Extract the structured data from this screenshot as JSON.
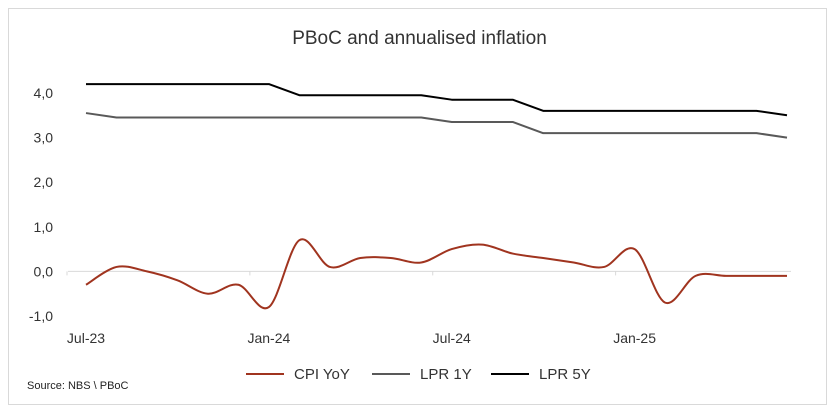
{
  "chart_data": {
    "type": "line",
    "title": "PBoC and annualised inflation",
    "xlabel": "",
    "ylabel": "",
    "ylim": [
      -1.0,
      4.0
    ],
    "yticks": [
      "-1,0",
      "0,0",
      "1,0",
      "2,0",
      "3,0",
      "4,0"
    ],
    "x": [
      "2023-07",
      "2023-08",
      "2023-09",
      "2023-10",
      "2023-11",
      "2023-12",
      "2024-01",
      "2024-02",
      "2024-03",
      "2024-04",
      "2024-05",
      "2024-06",
      "2024-07",
      "2024-08",
      "2024-09",
      "2024-10",
      "2024-11",
      "2024-12",
      "2025-01",
      "2025-02",
      "2025-03",
      "2025-04",
      "2025-05",
      "2025-06"
    ],
    "xtick_labels": [
      {
        "x": "2023-07",
        "label": "Jul-23"
      },
      {
        "x": "2024-01",
        "label": "Jan-24"
      },
      {
        "x": "2024-07",
        "label": "Jul-24"
      },
      {
        "x": "2025-01",
        "label": "Jan-25"
      }
    ],
    "series": [
      {
        "name": "CPI YoY",
        "color": "#a0341f",
        "values": [
          -0.3,
          0.1,
          0.0,
          -0.2,
          -0.5,
          -0.3,
          -0.8,
          0.7,
          0.1,
          0.3,
          0.3,
          0.2,
          0.5,
          0.6,
          0.4,
          0.3,
          0.2,
          0.1,
          0.5,
          -0.7,
          -0.1,
          -0.1,
          -0.1,
          -0.1
        ]
      },
      {
        "name": "LPR 1Y",
        "color": "#595959",
        "values": [
          3.55,
          3.45,
          3.45,
          3.45,
          3.45,
          3.45,
          3.45,
          3.45,
          3.45,
          3.45,
          3.45,
          3.45,
          3.35,
          3.35,
          3.35,
          3.1,
          3.1,
          3.1,
          3.1,
          3.1,
          3.1,
          3.1,
          3.1,
          3.0
        ]
      },
      {
        "name": "LPR 5Y",
        "color": "#000000",
        "values": [
          4.2,
          4.2,
          4.2,
          4.2,
          4.2,
          4.2,
          4.2,
          3.95,
          3.95,
          3.95,
          3.95,
          3.95,
          3.85,
          3.85,
          3.85,
          3.6,
          3.6,
          3.6,
          3.6,
          3.6,
          3.6,
          3.6,
          3.6,
          3.5
        ]
      }
    ],
    "grid": false,
    "legend": "bottom",
    "source": "Source: NBS \\ PBoC"
  }
}
